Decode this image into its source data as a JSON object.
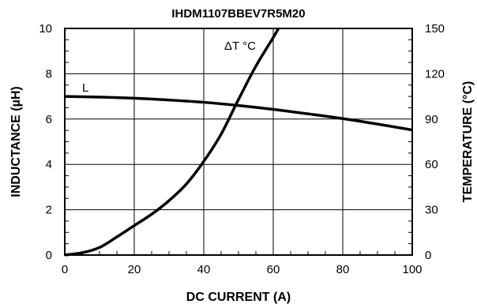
{
  "chart_data": {
    "type": "line",
    "title": "IHDM1107BBEV7R5M20",
    "xlabel": "DC CURRENT (A)",
    "ylabel_left": "INDUCTANCE (µH)",
    "ylabel_right": "TEMPERATURE (°C)",
    "xlim": [
      0,
      100
    ],
    "ylim_left": [
      0,
      10
    ],
    "ylim_right": [
      0,
      150
    ],
    "x_ticks": [
      0,
      20,
      40,
      60,
      80,
      100
    ],
    "y_left_ticks": [
      0,
      2,
      4,
      6,
      8,
      10
    ],
    "y_right_ticks": [
      0,
      30,
      60,
      90,
      120,
      150
    ],
    "grid": true,
    "series": [
      {
        "name": "L",
        "axis": "left",
        "x": [
          0,
          10,
          20,
          30,
          40,
          50,
          60,
          70,
          80,
          90,
          100
        ],
        "values": [
          7.0,
          6.97,
          6.92,
          6.84,
          6.74,
          6.6,
          6.43,
          6.23,
          6.02,
          5.78,
          5.52
        ]
      },
      {
        "name": "ΔT °C",
        "axis": "right",
        "x": [
          0,
          5,
          10,
          15,
          20,
          25,
          30,
          35,
          40,
          45,
          50,
          55,
          60,
          61.5
        ],
        "values": [
          0,
          1.5,
          5,
          12,
          19.5,
          27,
          36,
          47,
          62,
          80,
          103,
          125,
          144,
          150
        ]
      }
    ]
  }
}
